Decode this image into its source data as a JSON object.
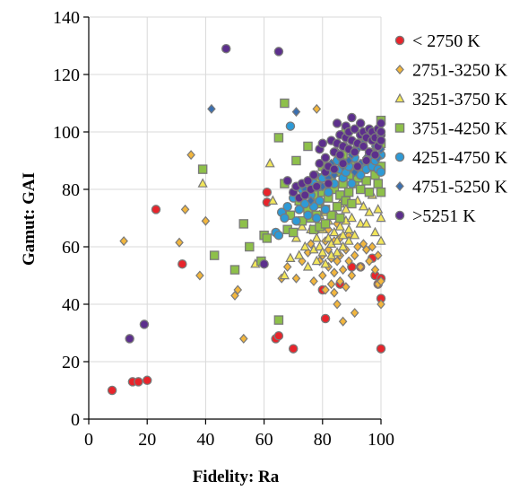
{
  "chart_data": {
    "type": "scatter",
    "xlabel": "Fidelity: Ra",
    "ylabel": "Gamut: GAI",
    "xlim": [
      0,
      100
    ],
    "ylim": [
      0,
      140
    ],
    "xticks": [
      0,
      20,
      40,
      60,
      80,
      100
    ],
    "yticks": [
      0,
      20,
      40,
      60,
      80,
      100,
      120,
      140
    ],
    "grid": true,
    "legend_position": "right",
    "series": [
      {
        "name": "< 2750 K",
        "marker": "circle",
        "color": "#e8242b",
        "points": [
          [
            8,
            10
          ],
          [
            15,
            13
          ],
          [
            17,
            13
          ],
          [
            20,
            13.5
          ],
          [
            23,
            73
          ],
          [
            32,
            54
          ],
          [
            61,
            79
          ],
          [
            61,
            75.5
          ],
          [
            64,
            28
          ],
          [
            65,
            29
          ],
          [
            70,
            24.5
          ],
          [
            80,
            45
          ],
          [
            81,
            35
          ],
          [
            86,
            47
          ],
          [
            90,
            53
          ],
          [
            93,
            53
          ],
          [
            97,
            56
          ],
          [
            98,
            50
          ],
          [
            99,
            47
          ],
          [
            100,
            42
          ],
          [
            100,
            49
          ],
          [
            100,
            24.5
          ]
        ]
      },
      {
        "name": "2751-3250 K",
        "marker": "diamond",
        "color": "#f2b63d",
        "points": [
          [
            12,
            62
          ],
          [
            31,
            61.5
          ],
          [
            33,
            73
          ],
          [
            35,
            92
          ],
          [
            38,
            50
          ],
          [
            40,
            69
          ],
          [
            50,
            43
          ],
          [
            51,
            45
          ],
          [
            53,
            28
          ],
          [
            66,
            49
          ],
          [
            68,
            53
          ],
          [
            71,
            49
          ],
          [
            73,
            55
          ],
          [
            75,
            58
          ],
          [
            76,
            61
          ],
          [
            77,
            48
          ],
          [
            78,
            108
          ],
          [
            79,
            55
          ],
          [
            80,
            50
          ],
          [
            80,
            57
          ],
          [
            81,
            62
          ],
          [
            81,
            45
          ],
          [
            82,
            53
          ],
          [
            82,
            59
          ],
          [
            82,
            66
          ],
          [
            83,
            47
          ],
          [
            83,
            56
          ],
          [
            84,
            44
          ],
          [
            84,
            51
          ],
          [
            84,
            62
          ],
          [
            85,
            40
          ],
          [
            85,
            55
          ],
          [
            85,
            68
          ],
          [
            86,
            48
          ],
          [
            86,
            57
          ],
          [
            86,
            63
          ],
          [
            87,
            34
          ],
          [
            87,
            52
          ],
          [
            88,
            59
          ],
          [
            88,
            46
          ],
          [
            89,
            55
          ],
          [
            89,
            64
          ],
          [
            90,
            50
          ],
          [
            91,
            37
          ],
          [
            91,
            57
          ],
          [
            92,
            60
          ],
          [
            93,
            53
          ],
          [
            94,
            61
          ],
          [
            95,
            59
          ],
          [
            96,
            55
          ],
          [
            97,
            60
          ],
          [
            98,
            52
          ],
          [
            99,
            57
          ],
          [
            99,
            47
          ],
          [
            100,
            48
          ],
          [
            100,
            40
          ]
        ]
      },
      {
        "name": "3251-3750 K",
        "marker": "triangle",
        "color": "#f2e65a",
        "points": [
          [
            39,
            82
          ],
          [
            57,
            54
          ],
          [
            62,
            89
          ],
          [
            63,
            76
          ],
          [
            67,
            50
          ],
          [
            69,
            56
          ],
          [
            71,
            63
          ],
          [
            72,
            57
          ],
          [
            73,
            67
          ],
          [
            74,
            60
          ],
          [
            75,
            53
          ],
          [
            75,
            70
          ],
          [
            76,
            66
          ],
          [
            77,
            59
          ],
          [
            77,
            75
          ],
          [
            78,
            63
          ],
          [
            78,
            55
          ],
          [
            79,
            71
          ],
          [
            79,
            60
          ],
          [
            80,
            66
          ],
          [
            80,
            58
          ],
          [
            81,
            72
          ],
          [
            81,
            54
          ],
          [
            82,
            63
          ],
          [
            82,
            69
          ],
          [
            83,
            61
          ],
          [
            83,
            57
          ],
          [
            84,
            65
          ],
          [
            84,
            72
          ],
          [
            85,
            62
          ],
          [
            85,
            58
          ],
          [
            86,
            67
          ],
          [
            86,
            75
          ],
          [
            87,
            64
          ],
          [
            87,
            60
          ],
          [
            88,
            69
          ],
          [
            88,
            73
          ],
          [
            89,
            66
          ],
          [
            89,
            62
          ],
          [
            90,
            70
          ],
          [
            91,
            64
          ],
          [
            92,
            76
          ],
          [
            93,
            68
          ],
          [
            94,
            74
          ],
          [
            95,
            68
          ],
          [
            96,
            72
          ],
          [
            97,
            78
          ],
          [
            98,
            65
          ],
          [
            99,
            73
          ],
          [
            100,
            70
          ],
          [
            100,
            62
          ]
        ]
      },
      {
        "name": "3751-4250 K",
        "marker": "square",
        "color": "#8ec04a",
        "points": [
          [
            39,
            87
          ],
          [
            43,
            57
          ],
          [
            50,
            52
          ],
          [
            53,
            68
          ],
          [
            55,
            60
          ],
          [
            59,
            55
          ],
          [
            60,
            64
          ],
          [
            61,
            63
          ],
          [
            65,
            98
          ],
          [
            65,
            34.5
          ],
          [
            67,
            110
          ],
          [
            67,
            82
          ],
          [
            68,
            66
          ],
          [
            69,
            71
          ],
          [
            70,
            65
          ],
          [
            71,
            90
          ],
          [
            72,
            76
          ],
          [
            73,
            69
          ],
          [
            74,
            80
          ],
          [
            75,
            95
          ],
          [
            75,
            73
          ],
          [
            76,
            70
          ],
          [
            77,
            78
          ],
          [
            77,
            66
          ],
          [
            78,
            84
          ],
          [
            78,
            71
          ],
          [
            79,
            75
          ],
          [
            79,
            67
          ],
          [
            80,
            79
          ],
          [
            80,
            88
          ],
          [
            81,
            73
          ],
          [
            81,
            68
          ],
          [
            82,
            77
          ],
          [
            83,
            83
          ],
          [
            83,
            71
          ],
          [
            84,
            80
          ],
          [
            85,
            74
          ],
          [
            85,
            86
          ],
          [
            86,
            78
          ],
          [
            86,
            70
          ],
          [
            87,
            82
          ],
          [
            87,
            92
          ],
          [
            88,
            76
          ],
          [
            88,
            100
          ],
          [
            89,
            85
          ],
          [
            89,
            79
          ],
          [
            90,
            88
          ],
          [
            90,
            75
          ],
          [
            91,
            82
          ],
          [
            92,
            96
          ],
          [
            92,
            84
          ],
          [
            93,
            80
          ],
          [
            94,
            87
          ],
          [
            95,
            83
          ],
          [
            96,
            79
          ],
          [
            97,
            90
          ],
          [
            98,
            85
          ],
          [
            99,
            82
          ],
          [
            100,
            96
          ],
          [
            100,
            79
          ],
          [
            100,
            104
          ],
          [
            100,
            88
          ]
        ]
      },
      {
        "name": "4251-4750 K",
        "marker": "circle",
        "color": "#2e9ad6",
        "points": [
          [
            64,
            65
          ],
          [
            65,
            64
          ],
          [
            66,
            72
          ],
          [
            67,
            70
          ],
          [
            68,
            74
          ],
          [
            69,
            102
          ],
          [
            70,
            77
          ],
          [
            71,
            69
          ],
          [
            72,
            73
          ],
          [
            73,
            80
          ],
          [
            74,
            75
          ],
          [
            75,
            71
          ],
          [
            76,
            78
          ],
          [
            77,
            82
          ],
          [
            77,
            74
          ],
          [
            78,
            70
          ],
          [
            79,
            81
          ],
          [
            79,
            76
          ],
          [
            80,
            84
          ],
          [
            81,
            73
          ],
          [
            82,
            79
          ],
          [
            83,
            86
          ],
          [
            84,
            82
          ],
          [
            85,
            90
          ],
          [
            86,
            87
          ],
          [
            87,
            84
          ],
          [
            88,
            86
          ],
          [
            89,
            88
          ],
          [
            90,
            82
          ],
          [
            91,
            91
          ],
          [
            92,
            88
          ],
          [
            93,
            85
          ],
          [
            94,
            89
          ],
          [
            95,
            87
          ],
          [
            96,
            92
          ],
          [
            97,
            88
          ],
          [
            98,
            90
          ],
          [
            99,
            87
          ],
          [
            100,
            86
          ],
          [
            100,
            92
          ]
        ]
      },
      {
        "name": "4751-5250 K",
        "marker": "diamond",
        "color": "#3a6fb0",
        "points": [
          [
            42,
            108
          ],
          [
            71,
            107
          ],
          [
            74,
            80
          ],
          [
            75,
            83
          ],
          [
            76,
            76
          ],
          [
            78,
            85
          ],
          [
            80,
            81
          ],
          [
            81,
            87
          ],
          [
            82,
            84
          ],
          [
            83,
            89
          ],
          [
            84,
            85
          ],
          [
            85,
            93
          ],
          [
            86,
            91
          ],
          [
            87,
            88
          ],
          [
            88,
            95
          ],
          [
            89,
            90
          ],
          [
            90,
            92
          ],
          [
            91,
            86
          ],
          [
            92,
            94
          ],
          [
            93,
            89
          ],
          [
            94,
            96
          ],
          [
            95,
            91
          ],
          [
            96,
            98
          ],
          [
            97,
            93
          ],
          [
            98,
            95
          ],
          [
            99,
            91
          ],
          [
            100,
            94
          ]
        ]
      },
      {
        "name": ">5251 K",
        "marker": "circle",
        "color": "#5c2f8c",
        "points": [
          [
            14,
            28
          ],
          [
            19,
            33
          ],
          [
            47,
            129
          ],
          [
            60,
            54
          ],
          [
            65,
            128
          ],
          [
            68,
            83
          ],
          [
            70,
            79
          ],
          [
            71,
            81
          ],
          [
            72,
            77
          ],
          [
            73,
            82
          ],
          [
            74,
            78
          ],
          [
            75,
            83
          ],
          [
            76,
            80
          ],
          [
            77,
            85
          ],
          [
            78,
            81
          ],
          [
            79,
            89
          ],
          [
            79,
            94
          ],
          [
            80,
            96
          ],
          [
            81,
            86
          ],
          [
            81,
            91
          ],
          [
            82,
            82
          ],
          [
            82,
            88
          ],
          [
            83,
            97
          ],
          [
            84,
            93
          ],
          [
            84,
            87
          ],
          [
            85,
            103
          ],
          [
            85,
            96
          ],
          [
            86,
            92
          ],
          [
            86,
            99
          ],
          [
            87,
            89
          ],
          [
            87,
            95
          ],
          [
            88,
            102
          ],
          [
            88,
            98
          ],
          [
            89,
            94
          ],
          [
            89,
            100
          ],
          [
            90,
            97
          ],
          [
            90,
            105
          ],
          [
            91,
            93
          ],
          [
            91,
            101
          ],
          [
            92,
            96
          ],
          [
            92,
            88
          ],
          [
            93,
            99
          ],
          [
            93,
            103
          ],
          [
            94,
            95
          ],
          [
            94,
            100
          ],
          [
            95,
            98
          ],
          [
            95,
            90
          ],
          [
            96,
            101
          ],
          [
            96,
            93
          ],
          [
            97,
            97
          ],
          [
            97,
            100
          ],
          [
            98,
            92
          ],
          [
            98,
            98
          ],
          [
            99,
            95
          ],
          [
            99,
            101
          ],
          [
            100,
            99
          ],
          [
            100,
            103
          ],
          [
            100,
            97
          ],
          [
            100,
            100
          ]
        ]
      }
    ]
  }
}
